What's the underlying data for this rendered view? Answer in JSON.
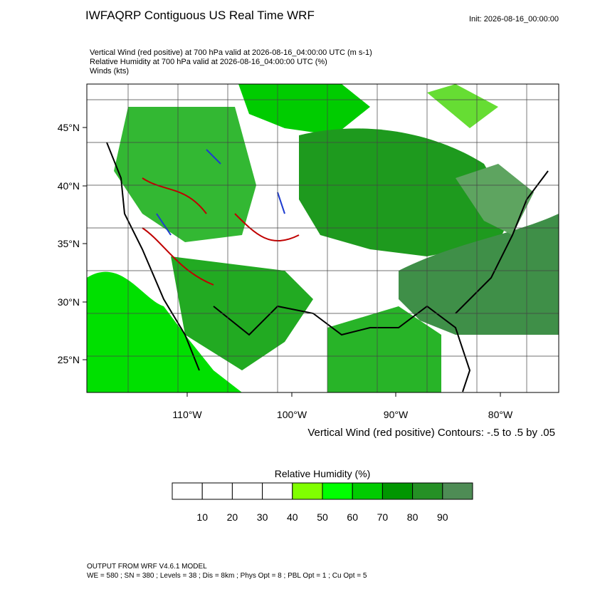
{
  "header": {
    "title": "IWFAQRP Contiguous US Real Time WRF",
    "init": "Init: 2026-08-16_00:00:00",
    "lines": [
      "Vertical Wind (red positive) at 700 hPa valid at 2026-08-16_04:00:00 UTC   (m s-1)",
      "Relative Humidity at 700 hPa valid at 2026-08-16_04:00:00 UTC   (%)",
      "Winds   (kts)"
    ]
  },
  "map": {
    "lat_labels": [
      "45°N",
      "40°N",
      "35°N",
      "30°N",
      "25°N"
    ],
    "lon_labels": [
      "110°W",
      "100°W",
      "90°W",
      "80°W"
    ],
    "contour_note": "Vertical Wind (red positive) Contours: -.5 to .5 by .05"
  },
  "colorbar": {
    "title": "Relative Humidity  (%)",
    "labels": [
      10,
      20,
      30,
      40,
      50,
      60,
      70,
      80,
      90
    ],
    "colors": [
      "#ffffff",
      "#ffffff",
      "#ffffff",
      "#ffffff",
      "#80ff00",
      "#00ff00",
      "#00cc00",
      "#009600",
      "#259025",
      "#4e8c55"
    ]
  },
  "footer": {
    "lines": [
      "OUTPUT FROM WRF V4.6.1 MODEL",
      "WE = 580 ; SN = 380 ; Levels = 38 ; Dis = 8km ; Phys Opt = 8 ; PBL Opt = 1 ; Cu Opt = 5"
    ]
  }
}
